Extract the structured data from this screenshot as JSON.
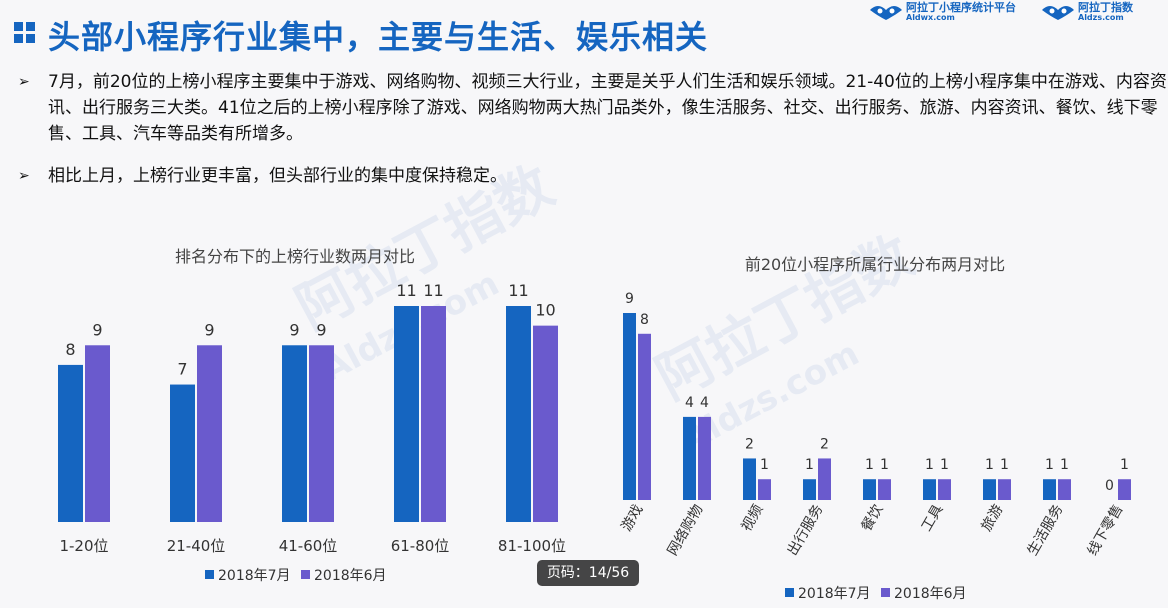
{
  "slide": {
    "title": "头部小程序行业集中，主要与生活、娱乐相关",
    "logos": [
      {
        "cn": "阿拉丁小程序统计平台",
        "en": "Aldwx.com"
      },
      {
        "cn": "阿拉丁指数",
        "en": "Aldzs.com"
      }
    ],
    "bullets": [
      {
        "marker": "➢",
        "text": "7月，前20位的上榜小程序主要集中于游戏、网络购物、视频三大行业，主要是关乎人们生活和娱乐领域。21-40位的上榜小程序集中在游戏、内容资讯、出行服务三大类。41位之后的上榜小程序除了游戏、网络购物两大热门品类外，像生活服务、社交、出行服务、旅游、内容资讯、餐饮、线下零售、工具、汽车等品类有所增多。"
      },
      {
        "marker": "➢",
        "text": "相比上月，上榜行业更丰富，但头部行业的集中度保持稳定。"
      }
    ],
    "page_badge": "页码：14/56",
    "watermark": [
      "阿拉丁指数",
      "Aldzs.com"
    ]
  },
  "colors": {
    "title": "#1565c0",
    "series_jul": "#1565c0",
    "series_jun": "#6a5acd"
  },
  "chart_data": [
    {
      "type": "bar",
      "title": "排名分布下的上榜行业数两月对比",
      "categories": [
        "1-20位",
        "21-40位",
        "41-60位",
        "61-80位",
        "81-100位"
      ],
      "series": [
        {
          "name": "2018年7月",
          "values": [
            8,
            7,
            9,
            11,
            11
          ]
        },
        {
          "name": "2018年6月",
          "values": [
            9,
            9,
            9,
            11,
            10
          ]
        }
      ],
      "ylim": [
        0,
        11
      ],
      "grid": false,
      "legend": "bottom"
    },
    {
      "type": "bar",
      "title": "前20位小程序所属行业分布两月对比",
      "categories": [
        "游戏",
        "网络购物",
        "视频",
        "出行服务",
        "餐饮",
        "工具",
        "旅游",
        "生活服务",
        "线下零售"
      ],
      "series": [
        {
          "name": "2018年7月",
          "values": [
            9,
            4,
            2,
            1,
            1,
            1,
            1,
            1,
            0
          ]
        },
        {
          "name": "2018年6月",
          "values": [
            8,
            4,
            1,
            2,
            1,
            1,
            1,
            1,
            1
          ]
        }
      ],
      "ylim": [
        0,
        9
      ],
      "grid": false,
      "legend": "bottom"
    }
  ]
}
